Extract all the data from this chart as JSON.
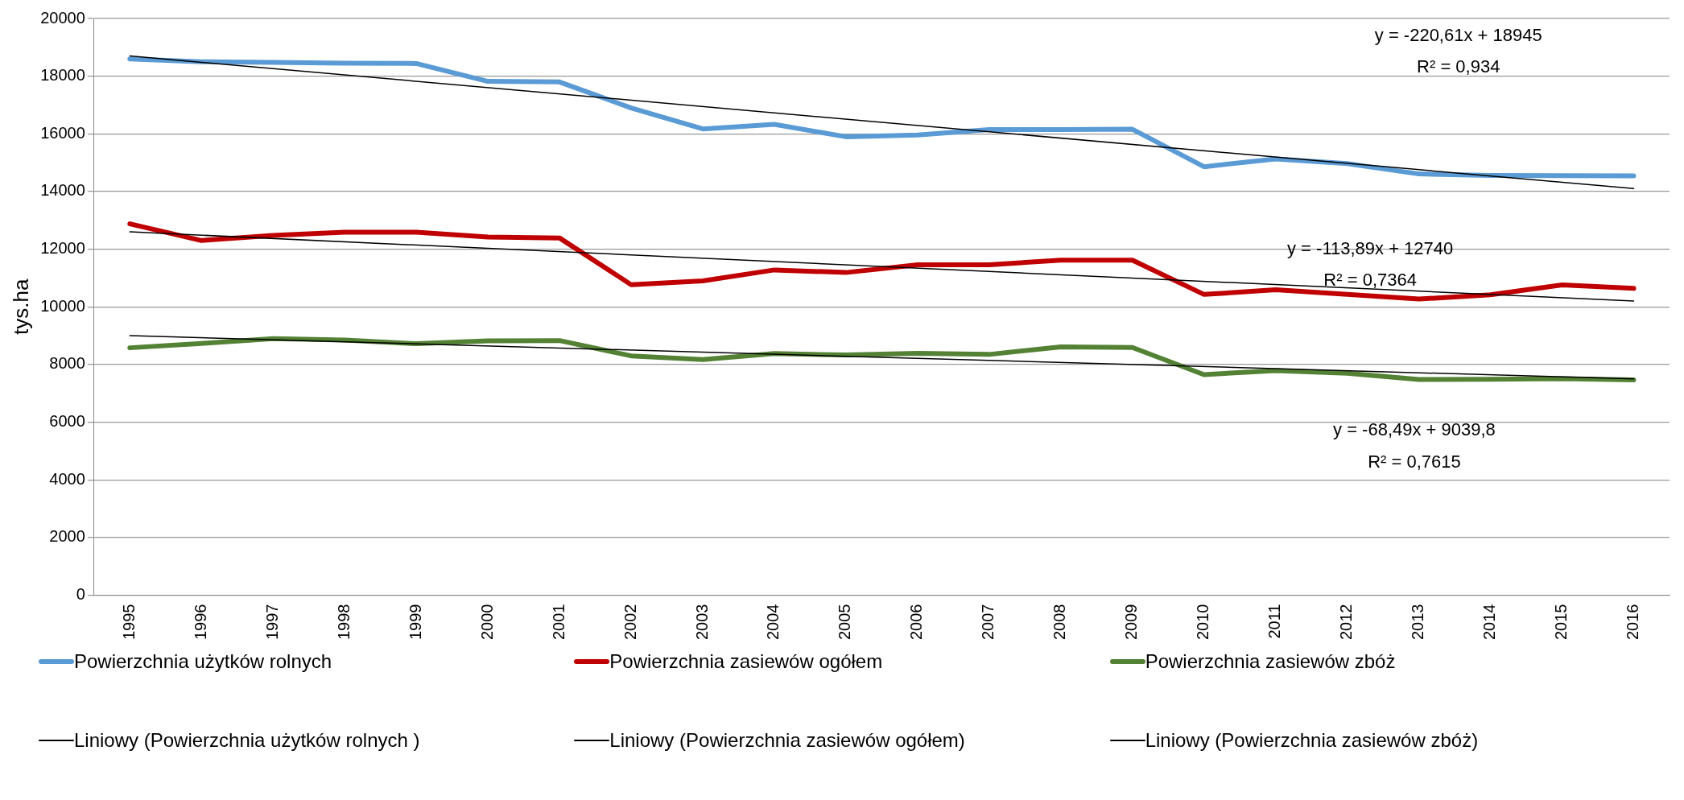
{
  "chart_data": {
    "type": "line",
    "ylabel": "tys.ha",
    "categories": [
      "1995",
      "1996",
      "1997",
      "1998",
      "1999",
      "2000",
      "2001",
      "2002",
      "2003",
      "2004",
      "2005",
      "2006",
      "2007",
      "2008",
      "2009",
      "2010",
      "2011",
      "2012",
      "2013",
      "2014",
      "2015",
      "2016"
    ],
    "series": [
      {
        "name": "Powierzchnia użytków rolnych",
        "color": "#5b9bd5",
        "values": [
          18600,
          18500,
          18480,
          18450,
          18440,
          17820,
          17800,
          16900,
          16170,
          16330,
          15900,
          15960,
          16150,
          16150,
          16160,
          14860,
          15130,
          14970,
          14610,
          14560,
          14550,
          14540
        ]
      },
      {
        "name": "Powierzchnia zasiewów ogółem",
        "color": "#c00000",
        "values": [
          12880,
          12300,
          12480,
          12590,
          12590,
          12420,
          12390,
          10770,
          10900,
          11280,
          11190,
          11460,
          11460,
          11620,
          11620,
          10430,
          10590,
          10430,
          10270,
          10420,
          10760,
          10640
        ]
      },
      {
        "name": "Powierzchnia zasiewów zbóż",
        "color": "#548235",
        "values": [
          8580,
          8730,
          8900,
          8850,
          8720,
          8820,
          8830,
          8300,
          8170,
          8380,
          8330,
          8390,
          8350,
          8610,
          8590,
          7650,
          7790,
          7700,
          7480,
          7490,
          7510,
          7470
        ]
      },
      {
        "name": "Liniowy (Powierzchnia użytków rolnych )",
        "color": "#000000",
        "values": [
          18700,
          null,
          null,
          null,
          null,
          null,
          null,
          null,
          null,
          null,
          null,
          null,
          null,
          null,
          null,
          null,
          null,
          null,
          null,
          null,
          null,
          14100
        ]
      },
      {
        "name": "Liniowy (Powierzchnia zasiewów ogółem)",
        "color": "#000000",
        "values": [
          12600,
          null,
          null,
          null,
          null,
          null,
          null,
          null,
          null,
          null,
          null,
          null,
          null,
          null,
          null,
          null,
          null,
          null,
          null,
          null,
          null,
          10200
        ]
      },
      {
        "name": "Liniowy (Powierzchnia zasiewów zbóż)",
        "color": "#000000",
        "values": [
          9000,
          null,
          null,
          null,
          null,
          null,
          null,
          null,
          null,
          null,
          null,
          null,
          null,
          null,
          null,
          null,
          null,
          null,
          null,
          null,
          null,
          7500
        ]
      }
    ],
    "ylim": [
      0,
      20000
    ],
    "yticks": [
      0,
      2000,
      4000,
      6000,
      8000,
      10000,
      12000,
      14000,
      16000,
      18000,
      20000
    ],
    "grid": "y",
    "legend": "bottom",
    "marker": "none",
    "annotations": [
      "y = -220,61x + 18945",
      "R² = 0,934",
      "y = -113,89x + 12740",
      "R² = 0,7364",
      "y = -68,49x + 9039,8",
      "R² = 0,7615"
    ]
  }
}
